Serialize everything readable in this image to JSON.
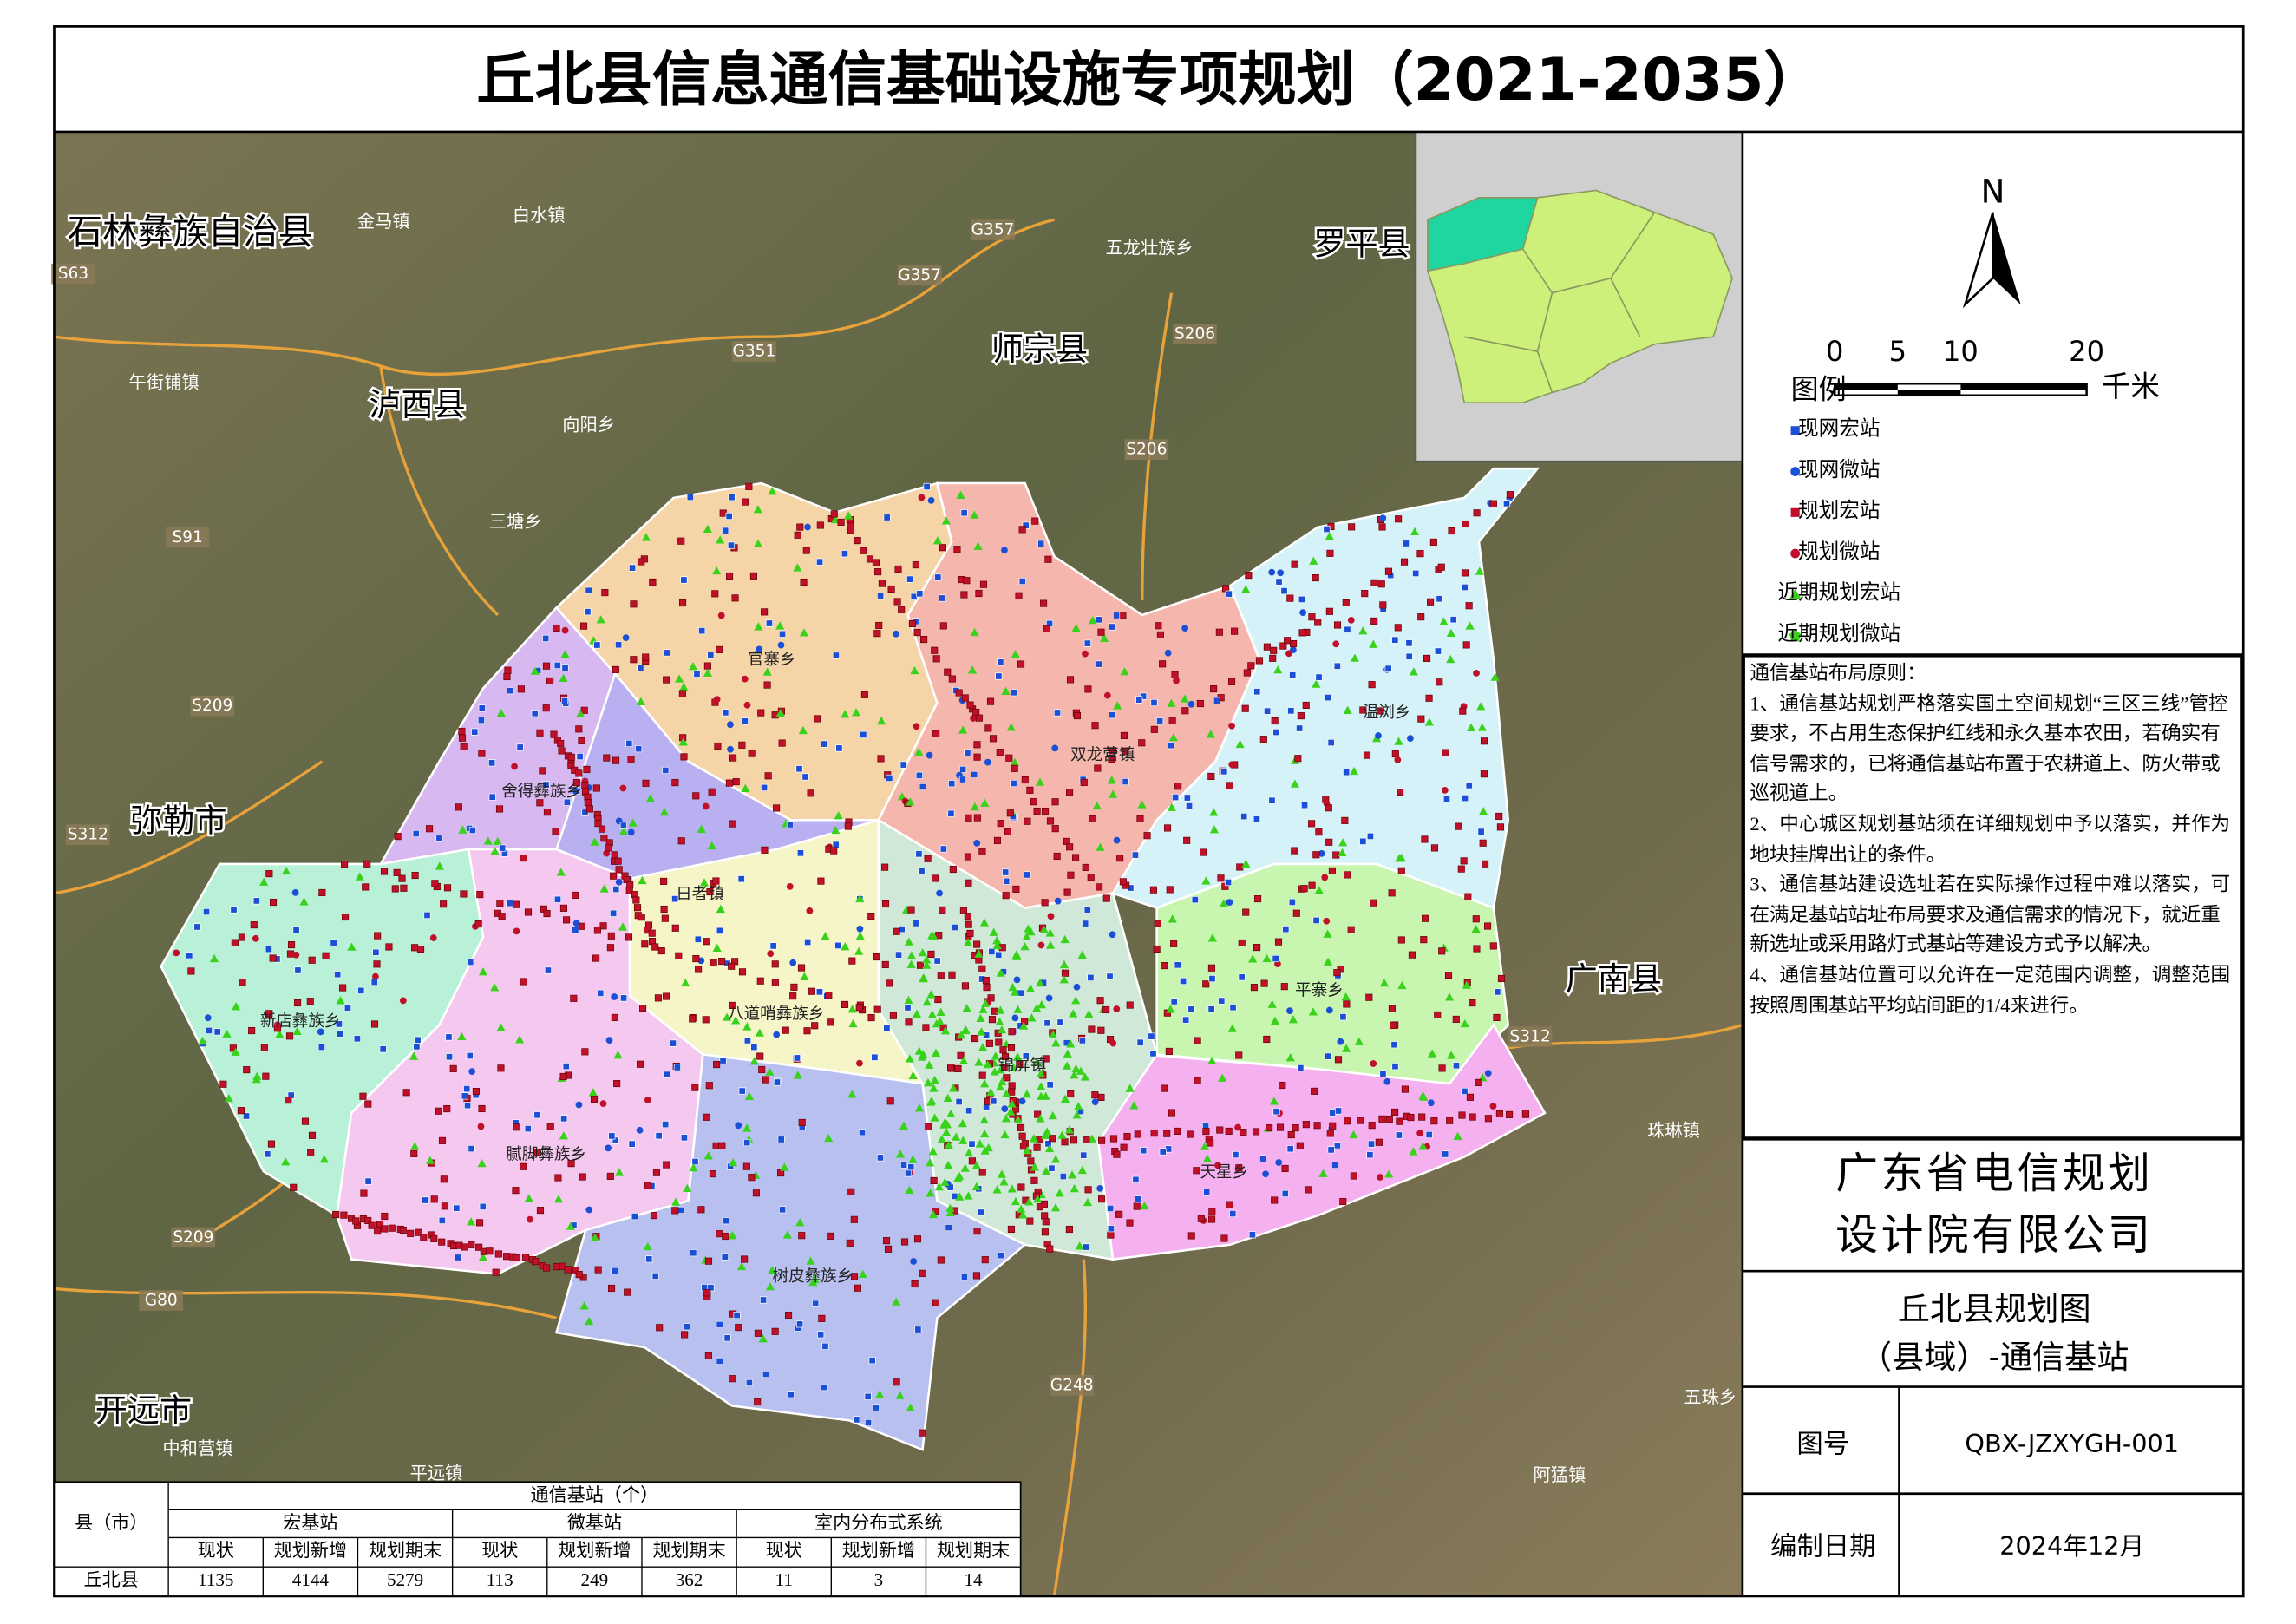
{
  "title": "丘北县信息通信基础设施专项规划（2021-2035）",
  "map": {
    "labels": [
      "石林彝族自治县",
      "弥勒市",
      "泸西县",
      "师宗县",
      "罗平县",
      "广南县",
      "开远市",
      "金马镇",
      "白水镇",
      "五龙壮族乡",
      "午街铺镇",
      "向阳乡",
      "三塘乡",
      "中和营镇",
      "平远镇",
      "珠琳镇",
      "五珠乡",
      "阿猛镇",
      "官寨乡",
      "双龙营镇",
      "温浏乡",
      "舍得彝族乡",
      "日者镇",
      "八道哨彝族乡",
      "锦屏镇",
      "平寨乡",
      "新店彝族乡",
      "腻脚彝族乡",
      "天星乡",
      "树皮彝族乡"
    ],
    "roads": [
      "G357",
      "G357",
      "G351",
      "S206",
      "S206",
      "S209",
      "S312",
      "S312",
      "S209",
      "G80",
      "G248",
      "S63",
      "S91"
    ]
  },
  "legend": {
    "north": "N",
    "scale_ticks": [
      0,
      5,
      10,
      20
    ],
    "unit": "千米",
    "title": "图例",
    "items": [
      "现网宏站",
      "现网微站",
      "规划宏站",
      "规划微站",
      "近期规划宏站",
      "近期规划微站"
    ]
  },
  "principles": {
    "heading": "通信基站布局原则：",
    "items": [
      "1、通信基站规划严格落实国土空间规划“三区三线”管控要求，不占用生态保护红线和永久基本农田，若确实有信号需求的，已将通信基站布置于农耕道上、防火带或巡视道上。",
      "2、中心城区规划基站须在详细规划中予以落实，并作为地块挂牌出让的条件。",
      "3、通信基站建设选址若在实际操作过程中难以落实，可在满足基站站址布局要求及通信需求的情况下，就近重新选址或采用路灯式基站等建设方式予以解决。",
      "4、通信基站位置可以允许在一定范围内调整，调整范围按照周围基站平均站间距的1/4来进行。"
    ]
  },
  "company": [
    "广东省电信规划",
    "设计院有限公司"
  ],
  "drawing_title": [
    "丘北县规划图",
    "（县域）-通信基站"
  ],
  "number": {
    "label": "图号",
    "value": "QBX-JZXYGH-001"
  },
  "date": {
    "label": "编制日期",
    "value": "2024年12月"
  },
  "table": {
    "row_header": "县（市）",
    "caption": "通信基站（个）",
    "groups": [
      "宏基站",
      "微基站",
      "室内分布式系统"
    ],
    "columns": [
      "现状",
      "规划新增",
      "规划期末",
      "现状",
      "规划新增",
      "规划期末",
      "现状",
      "规划新增",
      "规划期末"
    ],
    "rows": [
      {
        "name": "丘北县",
        "values": [
          1135,
          4144,
          5279,
          113,
          249,
          362,
          11,
          3,
          14
        ]
      }
    ]
  }
}
